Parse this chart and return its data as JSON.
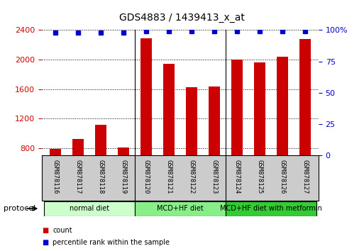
{
  "title": "GDS4883 / 1439413_x_at",
  "samples": [
    "GSM878116",
    "GSM878117",
    "GSM878118",
    "GSM878119",
    "GSM878120",
    "GSM878121",
    "GSM878122",
    "GSM878123",
    "GSM878124",
    "GSM878125",
    "GSM878126",
    "GSM878127"
  ],
  "counts": [
    790,
    930,
    1120,
    810,
    2290,
    1940,
    1630,
    1640,
    2000,
    1960,
    2040,
    2280
  ],
  "percentile_ranks": [
    98,
    98,
    98,
    98,
    99,
    99,
    99,
    99,
    99,
    99,
    99,
    99
  ],
  "bar_color": "#cc0000",
  "dot_color": "#0000cc",
  "ylim_left": [
    700,
    2400
  ],
  "ylim_right": [
    0,
    100
  ],
  "yticks_left": [
    800,
    1200,
    1600,
    2000,
    2400
  ],
  "yticks_right": [
    0,
    25,
    50,
    75,
    100
  ],
  "protocol_groups": [
    {
      "label": "normal diet",
      "start": 0,
      "end": 3,
      "color": "#ccffcc"
    },
    {
      "label": "MCD+HF diet",
      "start": 4,
      "end": 7,
      "color": "#88ee88"
    },
    {
      "label": "MCD+HF diet with metformin",
      "start": 8,
      "end": 11,
      "color": "#33cc33"
    }
  ],
  "protocol_label": "protocol",
  "legend_items": [
    {
      "label": "count",
      "color": "#cc0000"
    },
    {
      "label": "percentile rank within the sample",
      "color": "#0000cc"
    }
  ],
  "bar_width": 0.5,
  "bg_color": "#ffffff",
  "tick_area_bg": "#cccccc",
  "xlabel_color": "#cc0000",
  "ylabel_right_color": "#0000cc"
}
